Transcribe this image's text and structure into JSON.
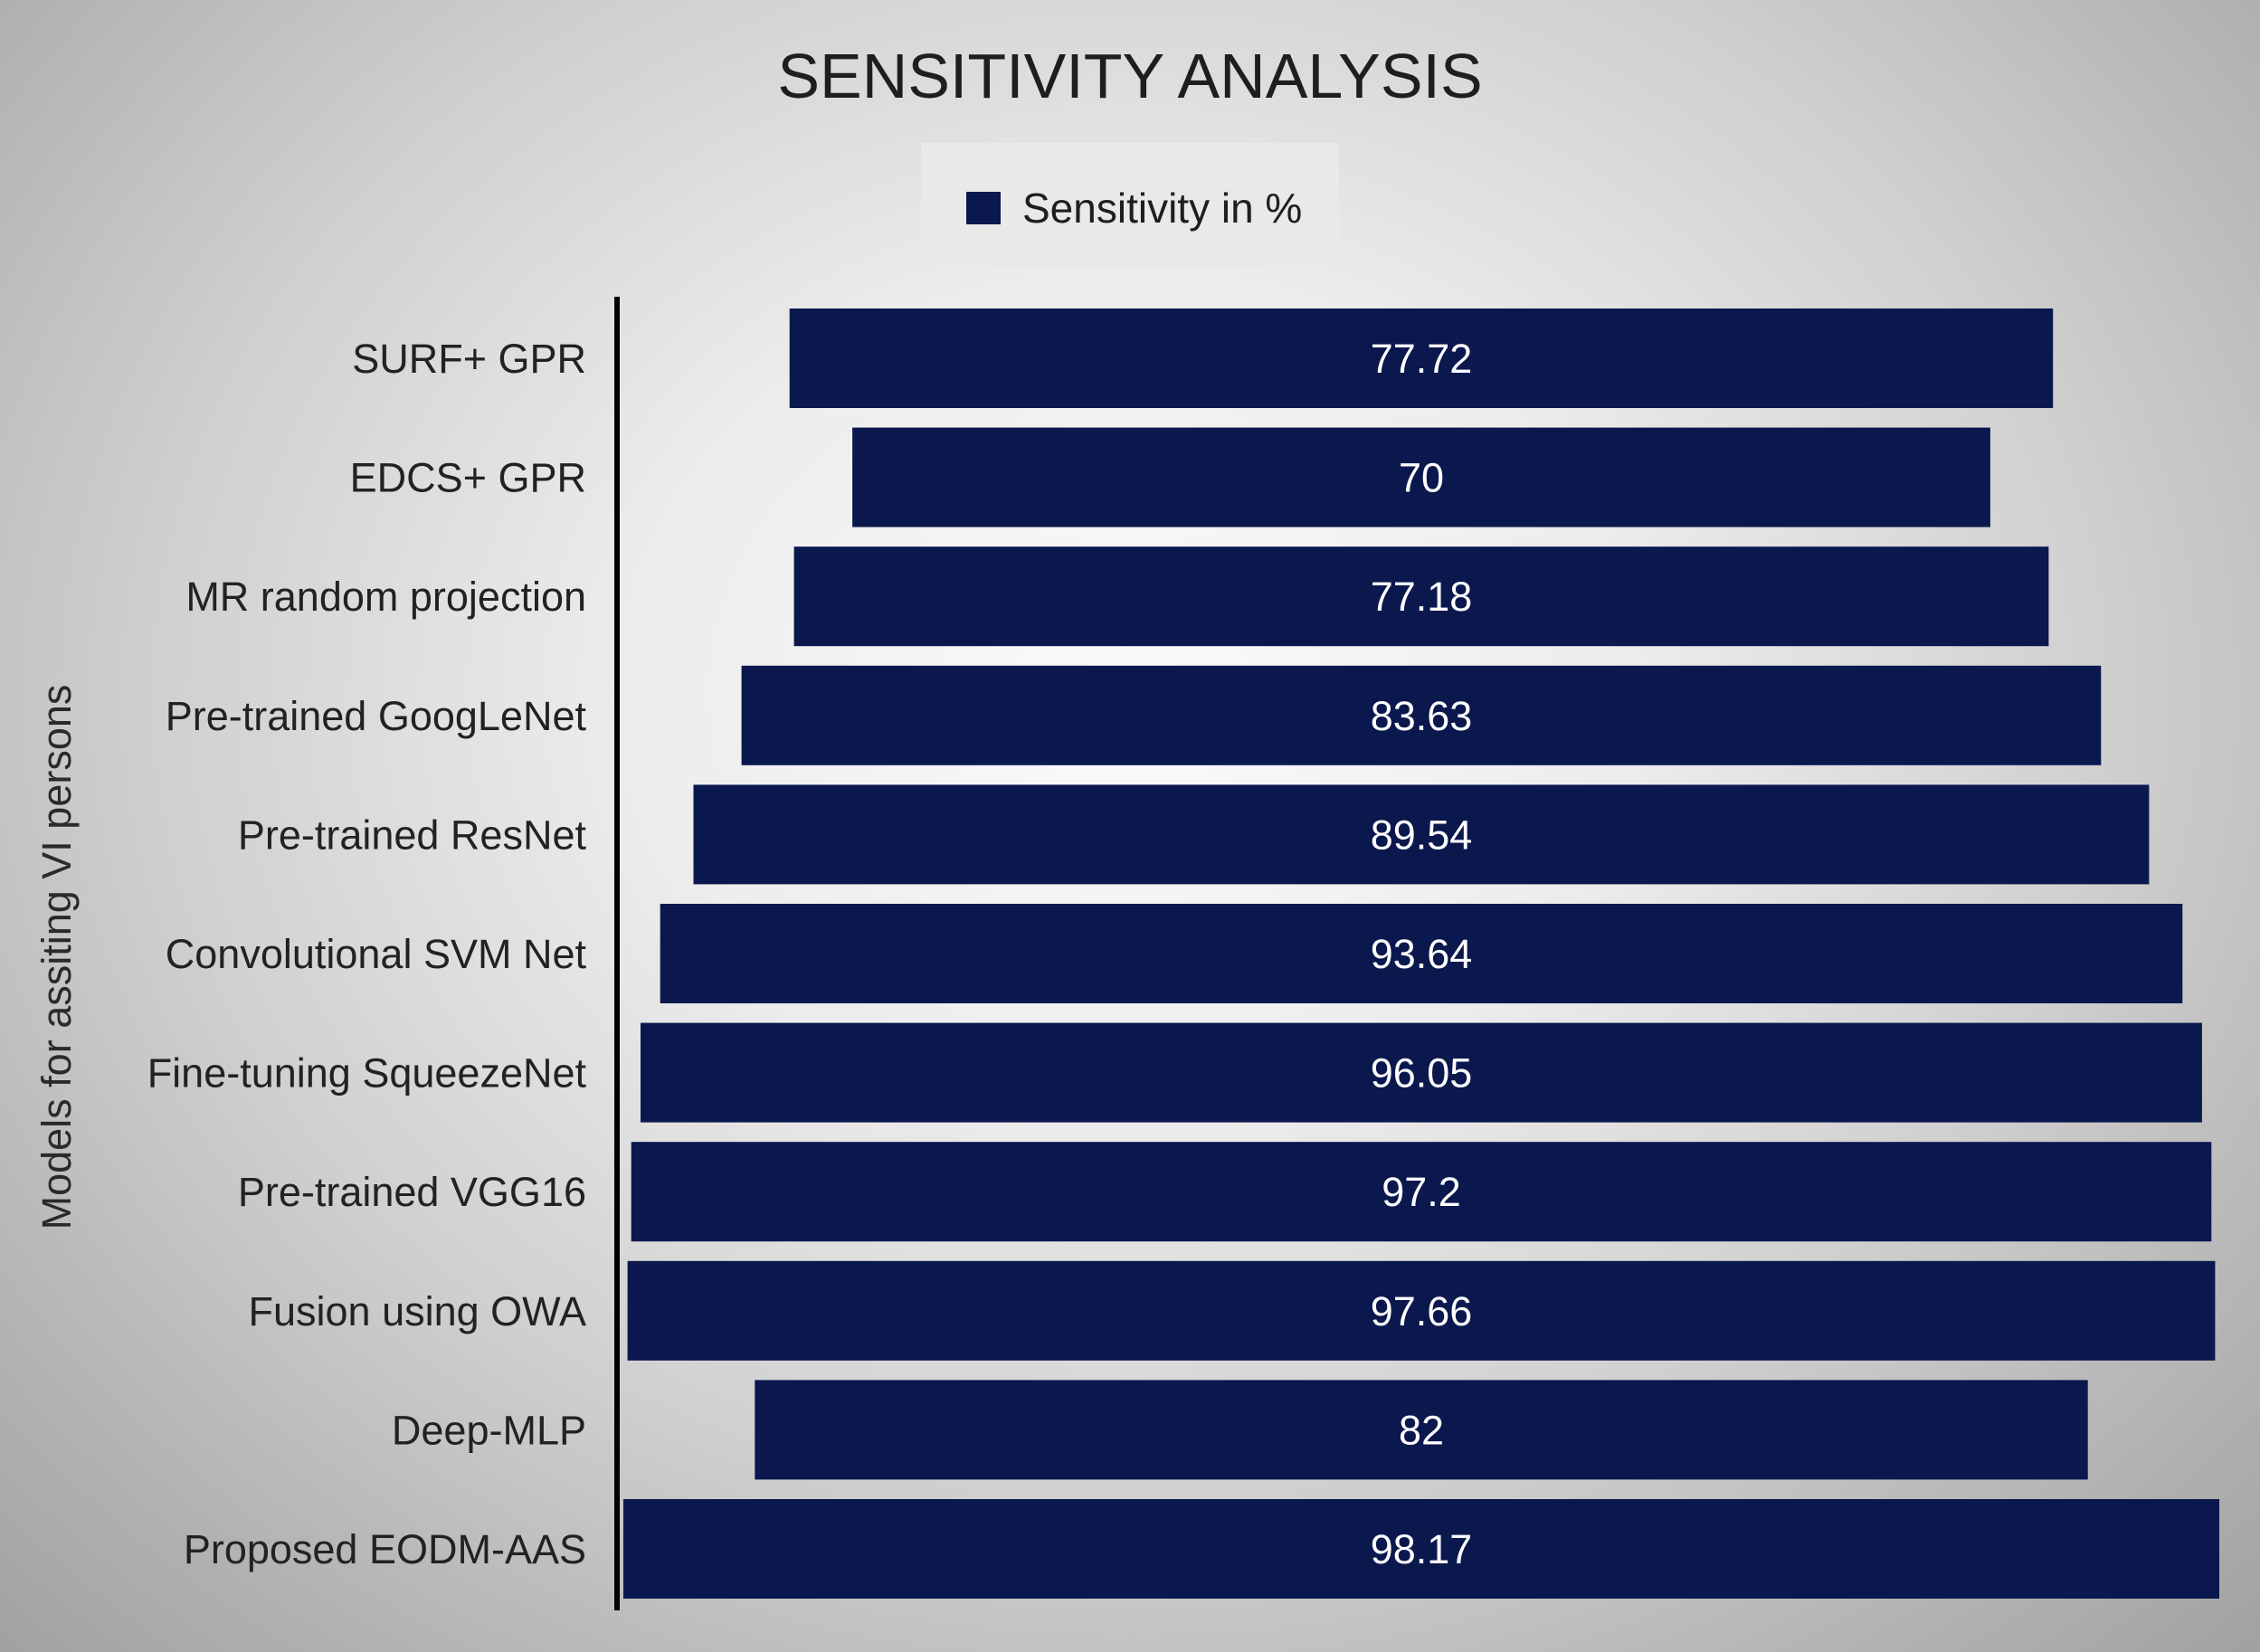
{
  "chart_data": {
    "type": "bar",
    "orientation": "horizontal",
    "layout": "centered funnel",
    "title": "SENSITIVITY ANALYSIS",
    "xlabel": "",
    "ylabel": "Models for assiting VI persons",
    "legend": {
      "position": "top-center",
      "entries": [
        "Sensitivity in %"
      ]
    },
    "categories": [
      "SURF+ GPR",
      "EDCS+ GPR",
      "MR random projection",
      "Pre-trained GoogLeNet",
      "Pre-trained ResNet",
      "Convolutional SVM Net",
      "Fine-tuning SqueezeNet",
      "Pre-trained VGG16",
      "Fusion using OWA",
      "Deep-MLP",
      "Proposed EODM-AAS"
    ],
    "series": [
      {
        "name": "Sensitivity in %",
        "values": [
          77.72,
          70,
          77.18,
          83.63,
          89.54,
          93.64,
          96.05,
          97.2,
          97.66,
          82,
          98.17
        ],
        "value_labels": [
          "77.72",
          "70",
          "77.18",
          "83.63",
          "89.54",
          "93.64",
          "96.05",
          "97.2",
          "97.66",
          "82",
          "98.17"
        ]
      }
    ],
    "xlim": [
      0,
      98.17
    ],
    "grid": false,
    "colors": {
      "bar": "#0b184e",
      "value_label": "#ffffff",
      "legend_box_bg": "#e9e9e9",
      "axis_line": "#000000",
      "text": "#222222"
    }
  }
}
